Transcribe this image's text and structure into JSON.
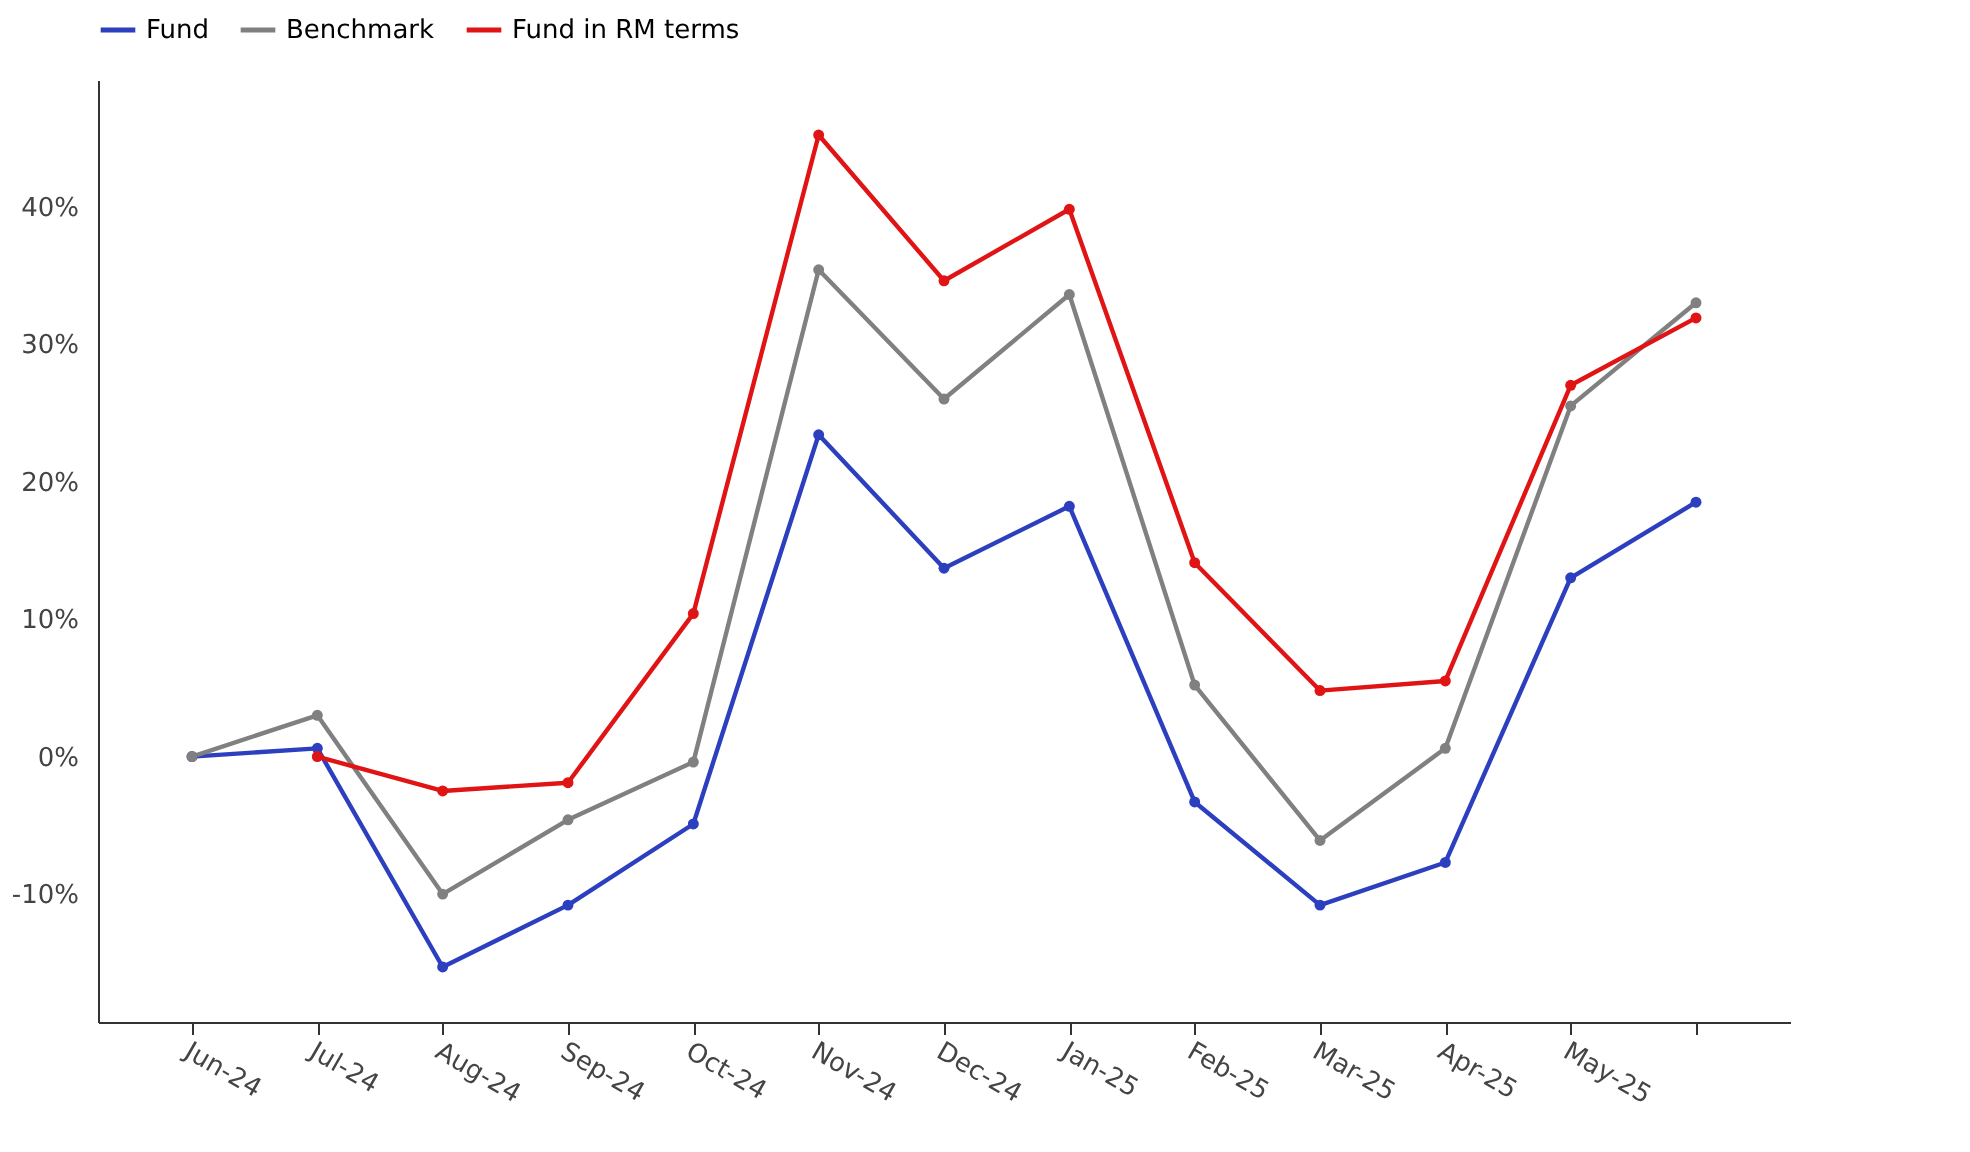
{
  "chart_data": {
    "type": "line",
    "categories": [
      "Jun-24",
      "Jul-24",
      "Aug-24",
      "Sep-24",
      "Oct-24",
      "Nov-24",
      "Dec-24",
      "Jan-25",
      "Feb-25",
      "Mar-25",
      "Apr-25",
      "May-25",
      null
    ],
    "series": [
      {
        "name": "Fund",
        "color": "#2b3fbf",
        "values": [
          0,
          0.6,
          -15.3,
          -10.8,
          -4.9,
          23.4,
          13.7,
          18.2,
          -3.3,
          -10.8,
          -7.7,
          13.0,
          18.5
        ]
      },
      {
        "name": "Benchmark",
        "color": "#808080",
        "values": [
          0,
          3.0,
          -10.0,
          -4.6,
          -0.4,
          35.4,
          26.0,
          33.6,
          5.2,
          -6.1,
          0.6,
          25.5,
          33.0
        ]
      },
      {
        "name": "Fund in RM terms",
        "color": "#e01414",
        "values": [
          null,
          0,
          -2.5,
          -1.9,
          10.4,
          45.2,
          34.6,
          39.8,
          14.1,
          4.8,
          5.5,
          27.0,
          31.9
        ]
      }
    ],
    "ylim": [
      -19.3,
      49.2
    ],
    "yticks": [
      {
        "value": -10,
        "label": "-10%"
      },
      {
        "value": 0,
        "label": "0%"
      },
      {
        "value": 10,
        "label": "10%"
      },
      {
        "value": 20,
        "label": "20%"
      },
      {
        "value": 30,
        "label": "30%"
      },
      {
        "value": 40,
        "label": "40%"
      }
    ],
    "grid": false,
    "legend": "top",
    "marker": "circle",
    "line_style": "solid"
  }
}
